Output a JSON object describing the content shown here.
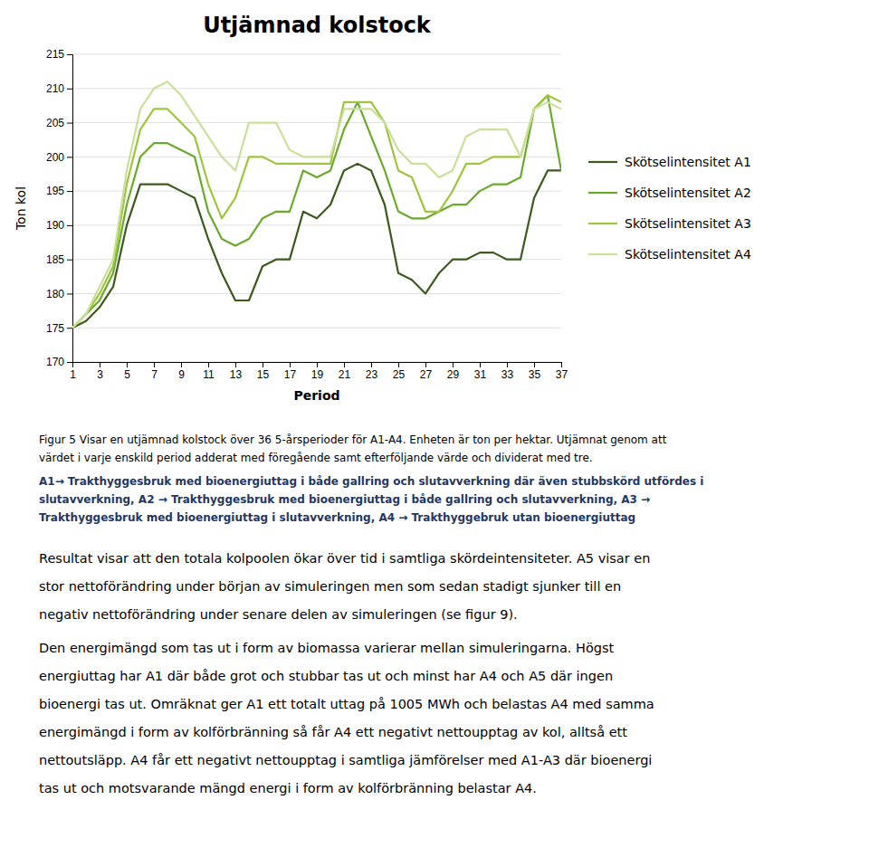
{
  "chart_data": {
    "type": "line",
    "title": "Utjämnad kolstock",
    "x_label": "Period",
    "y_label": "Ton kol",
    "x": [
      1,
      2,
      3,
      4,
      5,
      6,
      7,
      8,
      9,
      10,
      11,
      12,
      13,
      14,
      15,
      16,
      17,
      18,
      19,
      20,
      21,
      22,
      23,
      24,
      25,
      26,
      27,
      28,
      29,
      30,
      31,
      32,
      33,
      34,
      35,
      36,
      37
    ],
    "xlim": [
      1,
      37
    ],
    "xticks": [
      1,
      3,
      5,
      7,
      9,
      11,
      13,
      15,
      17,
      19,
      21,
      23,
      25,
      27,
      29,
      31,
      33,
      35,
      37
    ],
    "ylim": [
      170,
      215
    ],
    "yticks": [
      170,
      175,
      180,
      185,
      190,
      195,
      200,
      205,
      210,
      215
    ],
    "grid": true,
    "legend": "right",
    "series": [
      {
        "name": "Skötselintensitet A1",
        "color": "#3d5a1e",
        "values": [
          175,
          176,
          178,
          181,
          190,
          196,
          196,
          196,
          195,
          194,
          188,
          183,
          179,
          179,
          184,
          185,
          185,
          192,
          191,
          193,
          198,
          199,
          198,
          193,
          183,
          182,
          180,
          183,
          185,
          185,
          186,
          186,
          185,
          185,
          194,
          198,
          198
        ]
      },
      {
        "name": "Skötselintensitet A2",
        "color": "#6aaa2a",
        "values": [
          175,
          177,
          179,
          183,
          193,
          200,
          202,
          202,
          201,
          200,
          192,
          188,
          187,
          188,
          191,
          192,
          192,
          198,
          197,
          198,
          204,
          208,
          203,
          198,
          192,
          191,
          191,
          192,
          193,
          193,
          195,
          196,
          196,
          197,
          207,
          209,
          198
        ]
      },
      {
        "name": "Skötselintensitet A3",
        "color": "#9dc63c",
        "values": [
          175,
          177,
          180,
          184,
          196,
          204,
          207,
          207,
          205,
          203,
          196,
          191,
          194,
          200,
          200,
          199,
          199,
          199,
          199,
          199,
          208,
          208,
          208,
          205,
          198,
          197,
          192,
          192,
          195,
          199,
          199,
          200,
          200,
          200,
          207,
          209,
          208
        ]
      },
      {
        "name": "Skötselintensitet A4",
        "color": "#c8e09a",
        "values": [
          175,
          177,
          181,
          185,
          198,
          207,
          210,
          211,
          209,
          206,
          203,
          200,
          198,
          205,
          205,
          205,
          201,
          200,
          200,
          200,
          207,
          207,
          207,
          205,
          201,
          199,
          199,
          197,
          198,
          203,
          204,
          204,
          204,
          200,
          207,
          208,
          207
        ]
      }
    ],
    "annotations": [
      [
        "Figur 5 Visar en utjämnad kolstock över 36 5-årsperioder för A1-A4. Enheten är ton per hektar. Utjämnat genom att",
        "värdet i varje enskild period adderat med föregående samt efterföljande värde och dividerat med tre."
      ],
      [
        "A1→ Trakthyggesbruk med bioenergiuttag i både gallring och slutavverkning där även stubbskörd utfördes i",
        "slutavverkning, A2 → Trakthyggesbruk med bioenergiuttag i både gallring och slutavverkning, A3 →",
        "Trakthyggesbruk med bioenergiuttag i slutavverkning, A4 → Trakthyggebruk utan bioenergiuttag"
      ],
      [
        "Resultat visar att den totala kolpoolen ökar över tid i samtliga skördeintensiteter. A5 visar en",
        "stor nettoförändring under början av simuleringen men som sedan stadigt sjunker till en",
        "negativ nettoförändring under senare delen av simuleringen (se figur 9)."
      ],
      [
        "Den energimängd som tas ut i form av biomassa varierar mellan simuleringarna. Högst",
        "energiuttag har A1 där både grot och stubbar tas ut och minst har A4 och A5 där ingen",
        "bioenergi tas ut. Omräknat ger A1 ett totalt uttag på 1005 MWh och belastas A4 med samma",
        "energimängd i form av kolförbränning så får A4 ett negativt nettoupptag av kol, alltså ett",
        "nettoutsläpp. A4 får ett negativt nettoupptag i samtliga jämförelser med A1-A3 där bioenergi",
        "tas ut och motsvarande mängd energi i form av kolförbränning belastar A4."
      ]
    ]
  }
}
